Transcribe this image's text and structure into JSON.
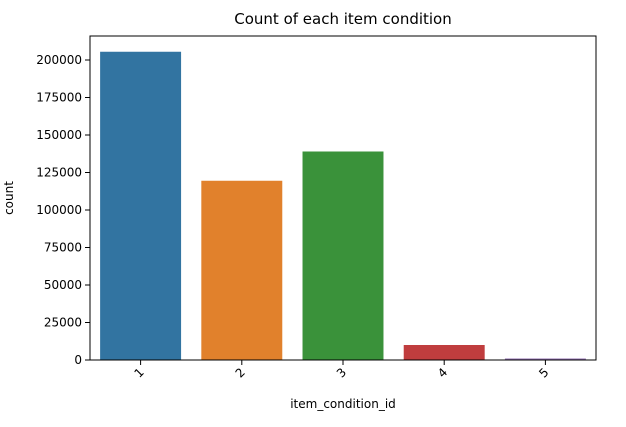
{
  "chart_data": {
    "type": "bar",
    "title": "Count of each item condition",
    "xlabel": "item_condition_id",
    "ylabel": "count",
    "categories": [
      "1",
      "2",
      "3",
      "4",
      "5"
    ],
    "values": [
      205500,
      119500,
      139000,
      10000,
      1000
    ],
    "colors": [
      "#3274a1",
      "#e1812c",
      "#3a923a",
      "#c03d3e",
      "#9372b2"
    ],
    "ylim": [
      0,
      216000
    ],
    "yticks": [
      0,
      25000,
      50000,
      75000,
      100000,
      125000,
      150000,
      175000,
      200000
    ],
    "grid": false,
    "legend": "none"
  }
}
